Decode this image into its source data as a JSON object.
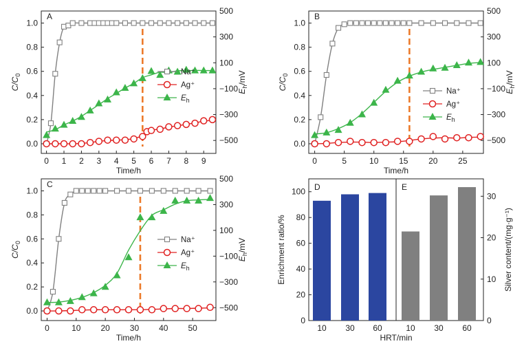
{
  "chart_data": [
    {
      "panel": "A",
      "type": "line",
      "xlabel": "Time/h",
      "ylabel_left": "C/C0",
      "ylabel_right": "Eh/mV",
      "xticks": [
        0,
        1,
        2,
        3,
        4,
        5,
        6,
        7,
        8,
        9
      ],
      "xlim": [
        -0.3,
        9.7
      ],
      "ylim_left": [
        -0.08,
        1.1
      ],
      "ylim_right": [
        -600,
        500
      ],
      "yticks_left": [
        0.0,
        0.2,
        0.4,
        0.6,
        0.8,
        1.0
      ],
      "yticks_right": [
        500,
        300,
        100,
        -100,
        -300,
        -500
      ],
      "vline_x": 5.5,
      "legend": [
        "Na⁺",
        "Ag⁺",
        "Eh"
      ],
      "series": [
        {
          "name": "Na⁺",
          "axis": "left",
          "marker": "square",
          "color": "#808080",
          "x": [
            0,
            0.25,
            0.5,
            0.75,
            1.0,
            1.25,
            1.5,
            2,
            2.5,
            2.75,
            3,
            3.25,
            3.5,
            3.75,
            4,
            4.5,
            5,
            5.5,
            6,
            6.5,
            7,
            7.5,
            8,
            8.5,
            9,
            9.5
          ],
          "y": [
            0.0,
            0.17,
            0.58,
            0.84,
            0.97,
            0.98,
            1.0,
            1.0,
            1.0,
            1.0,
            1.0,
            1.0,
            1.0,
            1.0,
            1.0,
            1.0,
            1.0,
            1.0,
            1.0,
            1.0,
            1.0,
            1.0,
            1.0,
            1.0,
            1.0,
            1.0
          ]
        },
        {
          "name": "Ag⁺",
          "axis": "left",
          "marker": "circle",
          "color": "#e02020",
          "x": [
            0,
            0.5,
            1,
            1.5,
            2,
            2.5,
            3,
            3.5,
            4,
            4.5,
            5,
            5.5,
            5.75,
            6,
            6.5,
            7,
            7.5,
            8,
            8.5,
            9,
            9.5
          ],
          "y": [
            0.0,
            0.0,
            0.0,
            0.0,
            0.0,
            0.01,
            0.02,
            0.03,
            0.03,
            0.03,
            0.04,
            0.06,
            0.1,
            0.11,
            0.12,
            0.14,
            0.15,
            0.16,
            0.17,
            0.19,
            0.2
          ],
          "fit": true
        },
        {
          "name": "Eh",
          "axis": "right",
          "marker": "triangle",
          "color": "#3cb54a",
          "x": [
            0,
            0.5,
            1,
            1.5,
            2,
            2.5,
            3,
            3.5,
            4,
            4.5,
            5,
            5.5,
            6,
            6.5,
            7,
            7.5,
            8,
            8.5,
            9,
            9.5
          ],
          "y": [
            -460,
            -410,
            -380,
            -350,
            -320,
            -270,
            -215,
            -185,
            -130,
            -95,
            -60,
            -20,
            35,
            5,
            40,
            30,
            45,
            40,
            40,
            40
          ],
          "fit": true
        }
      ]
    },
    {
      "panel": "B",
      "type": "line",
      "xlabel": "Time/h",
      "ylabel_left": "C/C0",
      "ylabel_right": "Eh/mV",
      "xticks": [
        0,
        5,
        10,
        15,
        20,
        25
      ],
      "xlim": [
        -1,
        28.5
      ],
      "ylim_left": [
        -0.08,
        1.1
      ],
      "ylim_right": [
        -600,
        500
      ],
      "yticks_left": [
        0.0,
        0.2,
        0.4,
        0.6,
        0.8,
        1.0
      ],
      "yticks_right": [
        500,
        300,
        100,
        -100,
        -300,
        -500
      ],
      "vline_x": 16,
      "legend": [
        "Na⁺",
        "Ag⁺",
        "Eh"
      ],
      "series": [
        {
          "name": "Na⁺",
          "axis": "left",
          "marker": "square",
          "color": "#808080",
          "x": [
            0,
            1,
            2,
            3,
            4,
            5,
            6,
            7,
            8,
            9,
            10,
            11,
            12,
            13,
            14,
            15,
            16,
            18,
            20,
            22,
            24,
            26,
            28
          ],
          "y": [
            0.0,
            0.22,
            0.57,
            0.83,
            0.96,
            0.99,
            1.0,
            1.0,
            1.0,
            1.0,
            1.0,
            1.0,
            1.0,
            1.0,
            1.0,
            1.0,
            1.0,
            1.0,
            1.0,
            1.0,
            1.0,
            1.0,
            1.0
          ]
        },
        {
          "name": "Ag⁺",
          "axis": "left",
          "marker": "circle",
          "color": "#e02020",
          "x": [
            0,
            2,
            4,
            6,
            8,
            10,
            12,
            14,
            16,
            18,
            20,
            22,
            24,
            26,
            28
          ],
          "y": [
            0.0,
            0.0,
            0.01,
            0.02,
            0.01,
            0.01,
            0.01,
            0.02,
            0.02,
            0.04,
            0.06,
            0.04,
            0.05,
            0.05,
            0.06
          ],
          "fit": true
        },
        {
          "name": "Eh",
          "axis": "right",
          "marker": "triangle",
          "color": "#3cb54a",
          "x": [
            0,
            2,
            4,
            6,
            8,
            10,
            12,
            14,
            16,
            18,
            20,
            22,
            24,
            26,
            28
          ],
          "y": [
            -460,
            -440,
            -420,
            -365,
            -300,
            -210,
            -110,
            -40,
            0,
            30,
            55,
            60,
            80,
            100,
            105
          ],
          "fit": true
        }
      ]
    },
    {
      "panel": "C",
      "type": "line",
      "xlabel": "Time/h",
      "ylabel_left": "C/C0",
      "ylabel_right": "Eh/mV",
      "xticks": [
        0,
        10,
        20,
        30,
        40,
        50
      ],
      "xlim": [
        -2,
        58
      ],
      "ylim_left": [
        -0.08,
        1.1
      ],
      "ylim_right": [
        -600,
        500
      ],
      "yticks_left": [
        0.0,
        0.2,
        0.4,
        0.6,
        0.8,
        1.0
      ],
      "yticks_right": [
        500,
        300,
        100,
        -100,
        -300,
        -500
      ],
      "vline_x": 32,
      "legend": [
        "Na⁺",
        "Ag⁺",
        "Eh"
      ],
      "series": [
        {
          "name": "Na⁺",
          "axis": "left",
          "marker": "square",
          "color": "#808080",
          "x": [
            0,
            2,
            4,
            6,
            8,
            10,
            12,
            14,
            16,
            18,
            20,
            24,
            28,
            32,
            36,
            40,
            44,
            48,
            52,
            56
          ],
          "y": [
            0.0,
            0.16,
            0.6,
            0.9,
            0.97,
            1.0,
            1.0,
            1.0,
            1.0,
            1.0,
            1.0,
            1.0,
            1.0,
            1.0,
            1.0,
            1.0,
            1.0,
            1.0,
            1.0,
            1.0
          ]
        },
        {
          "name": "Ag⁺",
          "axis": "left",
          "marker": "circle",
          "color": "#e02020",
          "x": [
            0,
            4,
            8,
            12,
            16,
            20,
            24,
            28,
            32,
            36,
            40,
            44,
            48,
            52,
            56
          ],
          "y": [
            0.0,
            0.0,
            0.0,
            0.01,
            0.01,
            0.01,
            0.01,
            0.01,
            0.01,
            0.01,
            0.02,
            0.02,
            0.02,
            0.02,
            0.03
          ],
          "fit": true
        },
        {
          "name": "Eh",
          "axis": "right",
          "marker": "triangle",
          "color": "#3cb54a",
          "x": [
            0,
            4,
            8,
            12,
            16,
            20,
            24,
            28,
            32,
            36,
            40,
            44,
            48,
            52,
            56
          ],
          "y": [
            -460,
            -460,
            -450,
            -420,
            -390,
            -340,
            -250,
            -110,
            200,
            200,
            250,
            330,
            330,
            330,
            350
          ],
          "fit": true
        }
      ]
    },
    {
      "panel": "D",
      "type": "bar",
      "xlabel": "HRT/min",
      "ylabel": "Enrichment ratio/%",
      "categories": [
        "10",
        "30",
        "60"
      ],
      "values": [
        93,
        98,
        99
      ],
      "ylim": [
        0,
        110
      ],
      "yticks": [
        0,
        20,
        40,
        60,
        80,
        100
      ],
      "color": "#2b46a0"
    },
    {
      "panel": "E",
      "type": "bar",
      "xlabel": "HRT/min",
      "ylabel": "Silver content/(mg·g⁻¹)",
      "categories": [
        "10",
        "30",
        "60"
      ],
      "values": [
        21.5,
        30.2,
        32.2
      ],
      "ylim": [
        0,
        34.2
      ],
      "yticks": [
        0,
        10,
        20,
        30
      ],
      "color": "#808080"
    }
  ]
}
